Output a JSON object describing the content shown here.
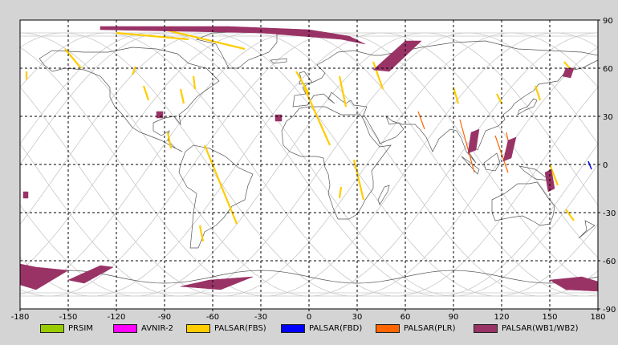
{
  "map": {
    "x_ticks": [
      "-180",
      "-150",
      "-120",
      "-90",
      "-60",
      "-30",
      "0",
      "30",
      "60",
      "90",
      "120",
      "150",
      "180"
    ],
    "y_ticks_right": [
      "90",
      "60",
      "30",
      "0",
      "-30",
      "-60",
      "-90"
    ],
    "colors": {
      "background": "#d4d4d4",
      "map_area": "#ffffff",
      "coastline": "#555555",
      "orbit_track": "#c8c8c8",
      "grid": "#000000"
    }
  },
  "legend": [
    {
      "label": "PRSIM",
      "color": "#99cc00"
    },
    {
      "label": "AVNIR-2",
      "color": "#ff00ff"
    },
    {
      "label": "PALSAR(FBS)",
      "color": "#ffcc00"
    },
    {
      "label": "PALSAR(FBD)",
      "color": "#0000ff"
    },
    {
      "label": "PALSAR(PLR)",
      "color": "#ff6600"
    },
    {
      "label": "PALSAR(WB1/WB2)",
      "color": "#993366"
    }
  ],
  "observations": {
    "FBS": [
      [
        -176,
        58,
        -176,
        53
      ],
      [
        -152,
        72,
        -142,
        60
      ],
      [
        -108,
        61,
        -110,
        56
      ],
      [
        -103,
        49,
        -100,
        40
      ],
      [
        -80,
        47,
        -78,
        38
      ],
      [
        -72,
        55,
        -71,
        47
      ],
      [
        -88,
        20,
        -86,
        10
      ],
      [
        -65,
        12,
        -45,
        -37
      ],
      [
        -68,
        -38,
        -66,
        -48
      ],
      [
        -8,
        58,
        0,
        44
      ],
      [
        -3,
        48,
        13,
        12
      ],
      [
        19,
        55,
        23,
        36
      ],
      [
        40,
        64,
        46,
        47
      ],
      [
        28,
        3,
        34,
        -22
      ],
      [
        20,
        -14,
        19,
        -21
      ],
      [
        90,
        48,
        93,
        38
      ],
      [
        117,
        44,
        120,
        38
      ],
      [
        141,
        49,
        144,
        40
      ],
      [
        159,
        64,
        164,
        58
      ],
      [
        150,
        0,
        155,
        -13
      ],
      [
        160,
        -28,
        165,
        -35
      ],
      [
        -120,
        82,
        -75,
        78
      ],
      [
        -90,
        84,
        -40,
        72
      ]
    ],
    "FBD": [
      [
        174,
        2,
        176,
        -3
      ]
    ],
    "PLR": [
      [
        68,
        33,
        72,
        22
      ],
      [
        94,
        28,
        103,
        -5
      ],
      [
        116,
        18,
        124,
        -5
      ],
      [
        123,
        20,
        126,
        5
      ]
    ],
    "WB": [
      [
        [
          -130,
          86
        ],
        [
          -50,
          86
        ],
        [
          0,
          84
        ],
        [
          25,
          80
        ],
        [
          35,
          75
        ],
        [
          20,
          78
        ],
        [
          -30,
          82
        ],
        [
          -130,
          84
        ]
      ],
      [
        [
          60,
          77
        ],
        [
          70,
          77
        ],
        [
          50,
          58
        ],
        [
          40,
          59
        ]
      ],
      [
        [
          160,
          60
        ],
        [
          165,
          60
        ],
        [
          163,
          54
        ],
        [
          158,
          55
        ]
      ],
      [
        [
          -95,
          33
        ],
        [
          -91,
          33
        ],
        [
          -91,
          29
        ],
        [
          -95,
          29
        ]
      ],
      [
        [
          -21,
          31
        ],
        [
          -17,
          31
        ],
        [
          -17,
          27
        ],
        [
          -21,
          27
        ]
      ],
      [
        [
          101,
          20
        ],
        [
          106,
          22
        ],
        [
          104,
          9
        ],
        [
          99,
          7
        ]
      ],
      [
        [
          124,
          15
        ],
        [
          129,
          17
        ],
        [
          126,
          4
        ],
        [
          121,
          2
        ]
      ],
      [
        [
          147,
          -5
        ],
        [
          151,
          -3
        ],
        [
          153,
          -15
        ],
        [
          149,
          -17
        ]
      ],
      [
        [
          -178,
          -17
        ],
        [
          -175,
          -17
        ],
        [
          -175,
          -21
        ],
        [
          -178,
          -21
        ]
      ],
      [
        [
          -180,
          -62
        ],
        [
          -170,
          -64
        ],
        [
          -150,
          -66
        ],
        [
          -170,
          -78
        ],
        [
          -180,
          -75
        ]
      ],
      [
        [
          -130,
          -63
        ],
        [
          -122,
          -64
        ],
        [
          -140,
          -74
        ],
        [
          -150,
          -72
        ]
      ],
      [
        [
          -62,
          -72
        ],
        [
          -35,
          -70
        ],
        [
          -55,
          -78
        ],
        [
          -80,
          -76
        ]
      ],
      [
        [
          150,
          -72
        ],
        [
          170,
          -70
        ],
        [
          180,
          -73
        ],
        [
          180,
          -79
        ],
        [
          160,
          -78
        ]
      ]
    ]
  }
}
